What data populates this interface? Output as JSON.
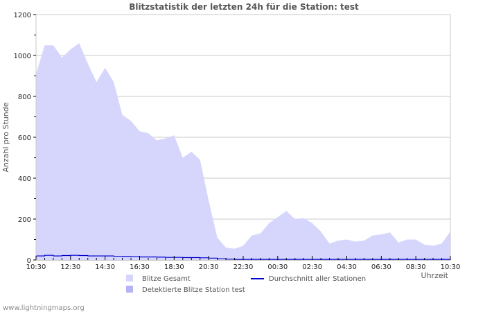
{
  "chart_data": {
    "type": "area",
    "title": "Blitzstatistik der letzten 24h für die Station: test",
    "xlabel": "Uhrzeit",
    "ylabel": "Anzahl pro Stunde",
    "ylim": [
      0,
      1200
    ],
    "yticks": [
      0,
      200,
      400,
      600,
      800,
      1000,
      1200
    ],
    "xtick_labels": [
      "10:30",
      "12:30",
      "14:30",
      "16:30",
      "18:30",
      "20:30",
      "22:30",
      "00:30",
      "02:30",
      "04:30",
      "06:30",
      "08:30",
      "10:30"
    ],
    "grid": true,
    "legend_position": "bottom",
    "x": [
      "10:30",
      "11:00",
      "11:30",
      "12:00",
      "12:30",
      "13:00",
      "13:30",
      "14:00",
      "14:30",
      "15:00",
      "15:30",
      "16:00",
      "16:30",
      "17:00",
      "17:30",
      "18:00",
      "18:30",
      "19:00",
      "19:30",
      "20:00",
      "20:30",
      "21:00",
      "21:30",
      "22:00",
      "22:30",
      "23:00",
      "23:30",
      "00:00",
      "00:30",
      "01:00",
      "01:30",
      "02:00",
      "02:30",
      "03:00",
      "03:30",
      "04:00",
      "04:30",
      "05:00",
      "05:30",
      "06:00",
      "06:30",
      "07:00",
      "07:30",
      "08:00",
      "08:30",
      "09:00",
      "09:30",
      "10:00",
      "10:30"
    ],
    "series": [
      {
        "name": "Blitze Gesamt",
        "type": "area",
        "color": "#d6d6fd",
        "values": [
          910,
          1050,
          1050,
          990,
          1030,
          1060,
          960,
          870,
          940,
          870,
          710,
          680,
          630,
          620,
          585,
          595,
          610,
          500,
          530,
          490,
          290,
          110,
          60,
          55,
          70,
          120,
          130,
          180,
          210,
          240,
          200,
          205,
          180,
          140,
          80,
          95,
          100,
          90,
          95,
          120,
          125,
          135,
          85,
          100,
          100,
          75,
          70,
          80,
          140
        ]
      },
      {
        "name": "Detektierte Blitze Station test",
        "type": "area",
        "color": "#b3b3f5",
        "values": [
          0,
          0,
          0,
          0,
          0,
          0,
          0,
          0,
          0,
          0,
          0,
          0,
          0,
          0,
          0,
          0,
          0,
          0,
          0,
          0,
          0,
          0,
          0,
          0,
          0,
          0,
          0,
          0,
          0,
          0,
          0,
          0,
          0,
          0,
          0,
          0,
          0,
          0,
          0,
          0,
          0,
          0,
          0,
          0,
          0,
          0,
          0,
          0,
          0
        ]
      },
      {
        "name": "Durchschnitt aller Stationen",
        "type": "line",
        "color": "#0000cc",
        "values": [
          20,
          23,
          20,
          22,
          23,
          22,
          20,
          20,
          20,
          18,
          17,
          16,
          15,
          15,
          14,
          13,
          13,
          12,
          12,
          11,
          9,
          6,
          4,
          3,
          3,
          3,
          3,
          3,
          3,
          3,
          3,
          3,
          3,
          3,
          3,
          3,
          3,
          3,
          3,
          3,
          3,
          3,
          3,
          3,
          3,
          3,
          3,
          3,
          3
        ]
      }
    ]
  },
  "legend": {
    "items": [
      {
        "label": "Blitze Gesamt",
        "swatch": "#d6d6fd"
      },
      {
        "label": "Detektierte Blitze Station test",
        "swatch": "#b3b3f5"
      },
      {
        "label": "Durchschnitt aller Stationen",
        "swatch": "#0000cc"
      }
    ]
  },
  "footer": {
    "text": "www.lightningmaps.org"
  }
}
